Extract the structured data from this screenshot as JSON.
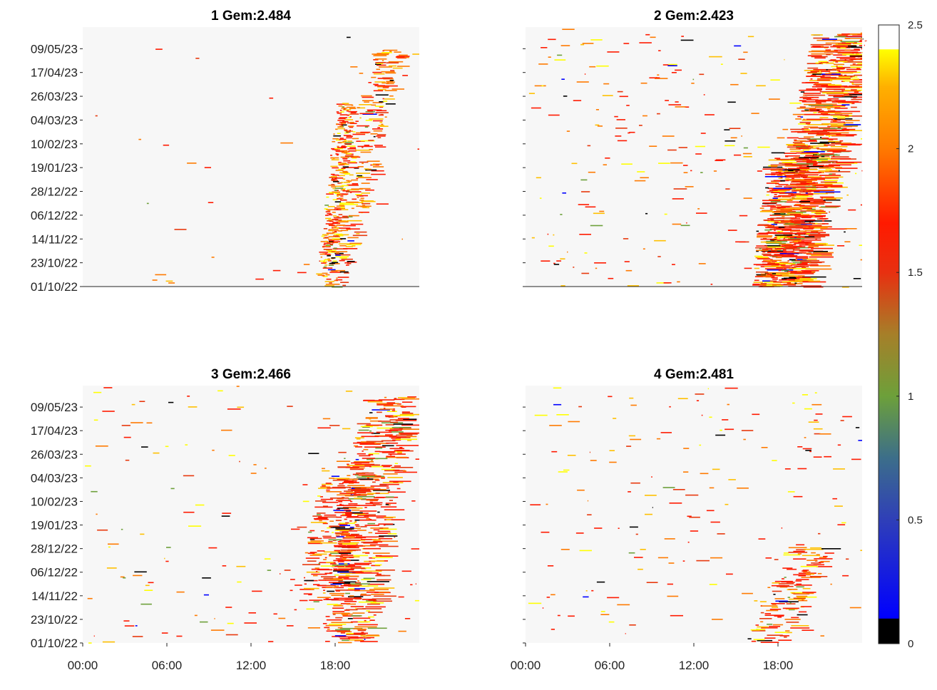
{
  "chart_data": {
    "type": "heatmap",
    "panels": [
      {
        "title": "1 Gem:2.484",
        "show_ylabels": true,
        "show_xlabels": false,
        "baseline": true,
        "clusters": [
          {
            "start_time": "17:30",
            "end_time": "21:40",
            "start_day": 0,
            "end_day": 220,
            "density": 1.2,
            "width_h": 1.1,
            "weight": [
              0.1,
              0.4,
              0.5
            ]
          },
          {
            "start_time": "17:20",
            "end_time": "18:40",
            "start_day": 20,
            "end_day": 170,
            "density": 1.5,
            "width_h": 0.6,
            "weight": [
              0.05,
              0.4,
              0.55
            ]
          }
        ],
        "noise": 30
      },
      {
        "title": "2 Gem:2.423",
        "show_ylabels": false,
        "show_xlabels": false,
        "baseline": true,
        "clusters": [
          {
            "start_time": "18:00",
            "end_time": "22:30",
            "start_day": 0,
            "end_day": 235,
            "density": 2.2,
            "width_h": 2.0,
            "weight": [
              0.12,
              0.55,
              0.33
            ]
          },
          {
            "start_time": "17:40",
            "end_time": "18:30",
            "start_day": 0,
            "end_day": 120,
            "density": 1.6,
            "width_h": 1.6,
            "weight": [
              0.15,
              0.6,
              0.25
            ]
          }
        ],
        "noise": 240
      },
      {
        "title": "3 Gem:2.466",
        "show_ylabels": true,
        "show_xlabels": true,
        "baseline": false,
        "clusters": [
          {
            "start_time": "18:30",
            "end_time": "21:30",
            "start_day": 0,
            "end_day": 230,
            "density": 1.6,
            "width_h": 1.7,
            "weight": [
              0.12,
              0.55,
              0.33
            ]
          },
          {
            "start_time": "16:30",
            "end_time": "18:30",
            "start_day": 40,
            "end_day": 170,
            "density": 1.4,
            "width_h": 1.4,
            "weight": [
              0.1,
              0.6,
              0.3
            ]
          }
        ],
        "noise": 160
      },
      {
        "title": "4 Gem:2.481",
        "show_ylabels": false,
        "show_xlabels": true,
        "baseline": false,
        "clusters": [
          {
            "start_time": "17:00",
            "end_time": "20:00",
            "start_day": 0,
            "end_day": 90,
            "density": 1.3,
            "width_h": 1.5,
            "weight": [
              0.12,
              0.45,
              0.43
            ]
          },
          {
            "start_time": "19:30",
            "end_time": "21:00",
            "start_day": 180,
            "end_day": 235,
            "density": 0.7,
            "width_h": 0.8,
            "weight": [
              0.05,
              0.3,
              0.65
            ]
          }
        ],
        "noise": 170
      }
    ],
    "ytick_labels": [
      "01/10/22",
      "23/10/22",
      "14/11/22",
      "06/12/22",
      "28/12/22",
      "19/01/23",
      "10/02/23",
      "04/03/23",
      "26/03/23",
      "17/04/23",
      "09/05/23"
    ],
    "ytick_days": [
      0,
      22,
      44,
      66,
      88,
      110,
      132,
      154,
      176,
      198,
      220
    ],
    "ylim_days": [
      0,
      240
    ],
    "xtick_labels": [
      "00:00",
      "06:00",
      "12:00",
      "18:00"
    ],
    "xtick_hours": [
      0,
      6,
      12,
      18
    ],
    "xlim_hours": [
      0,
      24
    ],
    "colorbar": {
      "range": [
        0,
        2.5
      ],
      "tick_labels": [
        "0",
        "0.5",
        "1",
        "1.5",
        "2",
        "2.5"
      ],
      "tick_values": [
        0,
        0.5,
        1,
        1.5,
        2,
        2.5
      ],
      "colormap": [
        [
          0.0,
          "#000000"
        ],
        [
          0.04,
          "#000000"
        ],
        [
          0.041,
          "#0000ff"
        ],
        [
          0.2,
          "#2f3fb8"
        ],
        [
          0.3,
          "#3c6e8a"
        ],
        [
          0.4,
          "#6da03a"
        ],
        [
          0.5,
          "#a67f29"
        ],
        [
          0.6,
          "#e83010"
        ],
        [
          0.68,
          "#ff1a00"
        ],
        [
          0.8,
          "#ff7a00"
        ],
        [
          0.9,
          "#ffb000"
        ],
        [
          0.96,
          "#ffff00"
        ],
        [
          0.961,
          "#ffffff"
        ],
        [
          1.0,
          "#ffffff"
        ]
      ],
      "colors": {
        "background": "#f7f7f7",
        "black": "#000000",
        "blue": "#0000ff",
        "green": "#6da03a",
        "red": "#ff1a00",
        "orange": "#ff7a00",
        "yellow": "#ffff00"
      }
    }
  }
}
